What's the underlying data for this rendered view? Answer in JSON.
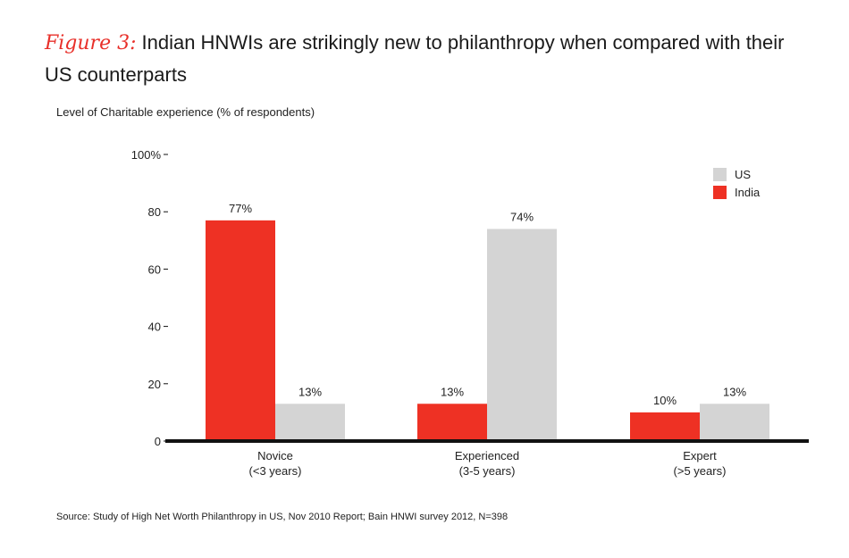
{
  "title": {
    "figure_label": "Figure 3:",
    "text": "Indian HNWIs are strikingly new to philanthropy when compared with their US counterparts"
  },
  "subtitle": "Level of Charitable experience (% of respondents)",
  "source": "Source: Study of High Net Worth Philanthropy in US, Nov 2010 Report; Bain HNWI survey 2012, N=398",
  "colors": {
    "india": "#ee3124",
    "us": "#d4d4d4",
    "axis": "#111111",
    "accent": "#e8302a"
  },
  "chart_data": {
    "type": "bar",
    "categories": [
      "Novice\n(<3 years)",
      "Experienced\n(3-5 years)",
      "Expert\n(>5 years)"
    ],
    "series": [
      {
        "name": "India",
        "values": [
          77,
          13,
          10
        ],
        "labels": [
          "77%",
          "13%",
          "10%"
        ]
      },
      {
        "name": "US",
        "values": [
          13,
          74,
          13
        ],
        "labels": [
          "13%",
          "74%",
          "13%"
        ]
      }
    ],
    "yticks": [
      0,
      20,
      40,
      60,
      80,
      100
    ],
    "ytick_labels": [
      "0",
      "20",
      "40",
      "60",
      "80",
      "100%"
    ],
    "ylim": [
      0,
      100
    ],
    "legend": {
      "position": "top-right",
      "order": [
        "US",
        "India"
      ]
    },
    "grid": false
  }
}
